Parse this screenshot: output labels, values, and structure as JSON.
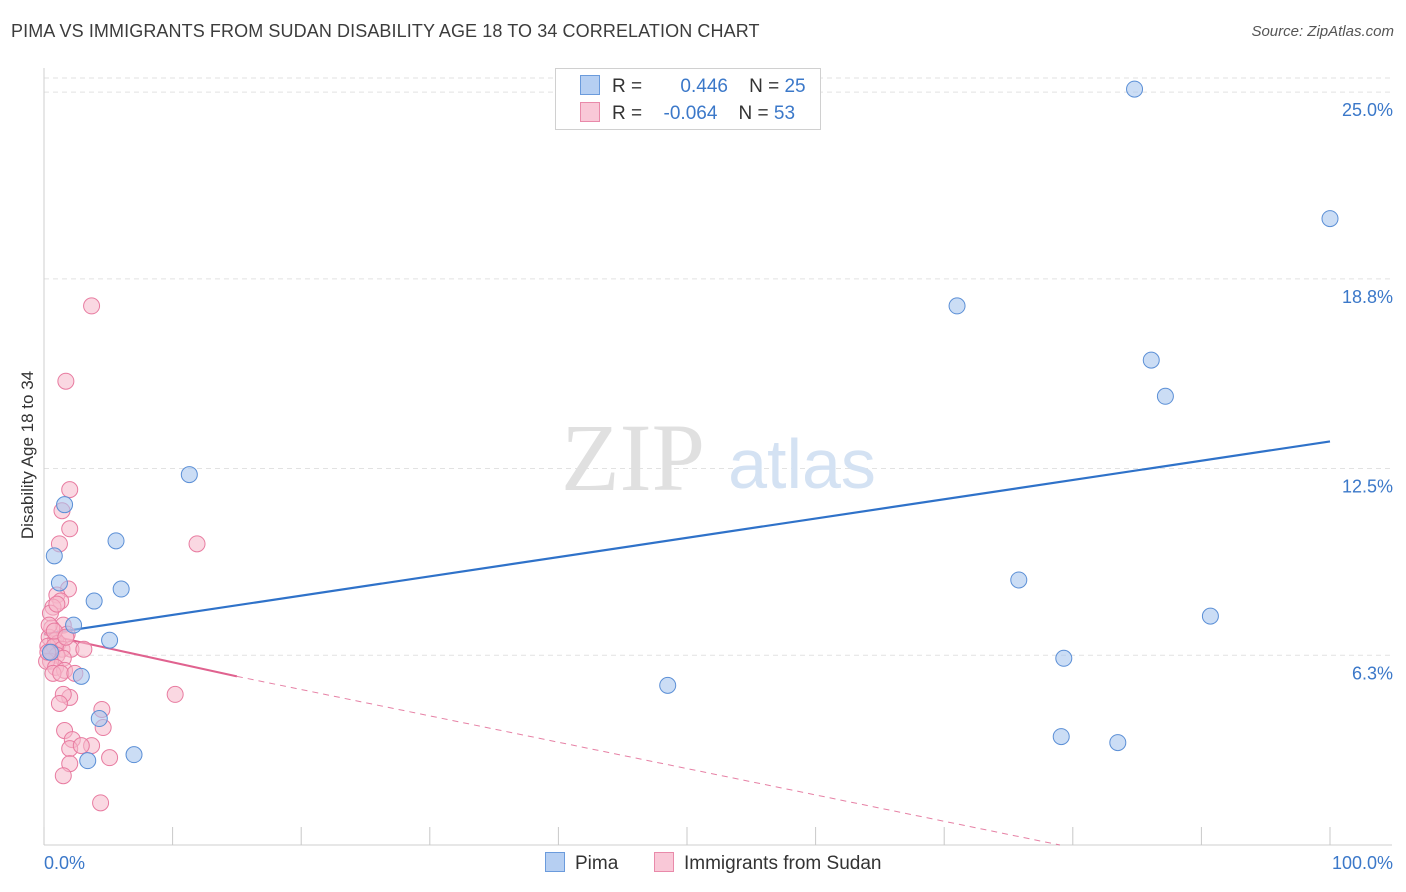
{
  "title": "PIMA VS IMMIGRANTS FROM SUDAN DISABILITY AGE 18 TO 34 CORRELATION CHART",
  "source": "Source: ZipAtlas.com",
  "watermark": {
    "zip": "ZIP",
    "atlas": "atlas"
  },
  "legend": {
    "rows": [
      {
        "r_label": "R =",
        "r_value": "0.446",
        "n_label": "N =",
        "n_value": "25"
      },
      {
        "r_label": "R =",
        "r_value": "-0.064",
        "n_label": "N =",
        "n_value": "53"
      }
    ]
  },
  "bottom_legend": {
    "pima": "Pima",
    "sudan": "Immigrants from Sudan"
  },
  "colors": {
    "pima_fill": "#a9c6ef",
    "pima_stroke": "#5b8fd6",
    "pima_line": "#2f72c9",
    "sudan_fill": "#f6b8cb",
    "sudan_stroke": "#e87ba0",
    "sudan_line": "#e0628f",
    "axis_label": "#3b78c9",
    "grid": "#e2e2e2"
  },
  "chart_data": {
    "type": "scatter",
    "title": "PIMA VS IMMIGRANTS FROM SUDAN DISABILITY AGE 18 TO 34 CORRELATION CHART",
    "xlabel": "",
    "ylabel": "Disability Age 18 to 34",
    "xlim": [
      0,
      100
    ],
    "ylim": [
      0,
      25.8
    ],
    "x_tick_labels": [
      "0.0%",
      "100.0%"
    ],
    "y_ticks": [
      6.3,
      12.5,
      18.8,
      25.0
    ],
    "y_tick_labels": [
      "6.3%",
      "12.5%",
      "18.8%",
      "25.0%"
    ],
    "grid": true,
    "legend_position": "top-center",
    "series": [
      {
        "name": "Pima",
        "points": [
          [
            84.8,
            25.1
          ],
          [
            100.0,
            20.8
          ],
          [
            71.0,
            17.9
          ],
          [
            86.1,
            16.1
          ],
          [
            87.2,
            14.9
          ],
          [
            11.3,
            12.3
          ],
          [
            1.6,
            11.3
          ],
          [
            0.8,
            9.6
          ],
          [
            5.6,
            10.1
          ],
          [
            1.2,
            8.7
          ],
          [
            6.0,
            8.5
          ],
          [
            3.9,
            8.1
          ],
          [
            2.3,
            7.3
          ],
          [
            5.1,
            6.8
          ],
          [
            2.9,
            5.6
          ],
          [
            48.5,
            5.3
          ],
          [
            75.8,
            8.8
          ],
          [
            79.3,
            6.2
          ],
          [
            90.7,
            7.6
          ],
          [
            79.1,
            3.6
          ],
          [
            83.5,
            3.4
          ],
          [
            4.3,
            4.2
          ],
          [
            3.4,
            2.8
          ],
          [
            7.0,
            3.0
          ],
          [
            0.5,
            6.4
          ]
        ],
        "trend": {
          "x": [
            0,
            100
          ],
          "y": [
            7.0,
            13.4
          ]
        }
      },
      {
        "name": "Immigrants from Sudan",
        "points": [
          [
            3.7,
            17.9
          ],
          [
            1.7,
            15.4
          ],
          [
            2.0,
            11.8
          ],
          [
            1.4,
            11.1
          ],
          [
            2.0,
            10.5
          ],
          [
            1.2,
            10.0
          ],
          [
            11.9,
            10.0
          ],
          [
            1.9,
            8.5
          ],
          [
            1.0,
            8.3
          ],
          [
            1.3,
            8.1
          ],
          [
            0.7,
            7.9
          ],
          [
            0.5,
            7.7
          ],
          [
            1.5,
            7.3
          ],
          [
            0.6,
            7.2
          ],
          [
            1.8,
            7.0
          ],
          [
            0.4,
            6.9
          ],
          [
            0.9,
            6.8
          ],
          [
            1.1,
            6.7
          ],
          [
            0.3,
            6.6
          ],
          [
            0.8,
            6.6
          ],
          [
            1.4,
            6.5
          ],
          [
            2.1,
            6.5
          ],
          [
            3.1,
            6.5
          ],
          [
            0.6,
            6.4
          ],
          [
            1.0,
            6.3
          ],
          [
            1.5,
            6.2
          ],
          [
            0.5,
            6.1
          ],
          [
            0.2,
            6.1
          ],
          [
            0.9,
            5.9
          ],
          [
            1.6,
            5.8
          ],
          [
            0.7,
            5.7
          ],
          [
            1.3,
            5.7
          ],
          [
            2.4,
            5.7
          ],
          [
            10.2,
            5.0
          ],
          [
            2.0,
            4.9
          ],
          [
            1.5,
            5.0
          ],
          [
            1.2,
            4.7
          ],
          [
            4.5,
            4.5
          ],
          [
            3.7,
            3.3
          ],
          [
            4.6,
            3.9
          ],
          [
            1.6,
            3.8
          ],
          [
            2.2,
            3.5
          ],
          [
            2.0,
            3.2
          ],
          [
            2.9,
            3.3
          ],
          [
            5.1,
            2.9
          ],
          [
            2.0,
            2.7
          ],
          [
            1.5,
            2.3
          ],
          [
            4.4,
            1.4
          ],
          [
            0.4,
            7.3
          ],
          [
            0.3,
            6.4
          ],
          [
            1.0,
            8.0
          ],
          [
            0.8,
            7.1
          ],
          [
            1.7,
            6.9
          ]
        ],
        "trend": {
          "x": [
            0,
            15
          ],
          "y": [
            7.0,
            5.6
          ]
        },
        "trend_extension": {
          "x": [
            15,
            79
          ],
          "y": [
            5.6,
            0
          ]
        }
      }
    ]
  }
}
